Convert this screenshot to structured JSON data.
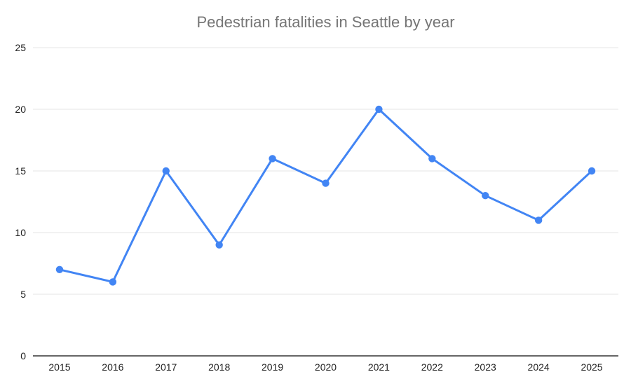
{
  "chart_data": {
    "type": "line",
    "title": "Pedestrian fatalities in Seattle by year",
    "categories": [
      "2015",
      "2016",
      "2017",
      "2018",
      "2019",
      "2020",
      "2021",
      "2022",
      "2023",
      "2024",
      "2025"
    ],
    "values": [
      7,
      6,
      15,
      9,
      16,
      14,
      20,
      16,
      13,
      11,
      15
    ],
    "xlabel": "",
    "ylabel": "",
    "ylim": [
      0,
      25
    ],
    "yticks": [
      0,
      5,
      10,
      15,
      20,
      25
    ],
    "grid": true,
    "legend": "none",
    "colors": {
      "line": "#4285f4",
      "point": "#4285f4",
      "grid": "#e6e6e6",
      "axis": "#333333",
      "title": "#757575",
      "tick_text": "#222222",
      "background": "#ffffff"
    }
  }
}
